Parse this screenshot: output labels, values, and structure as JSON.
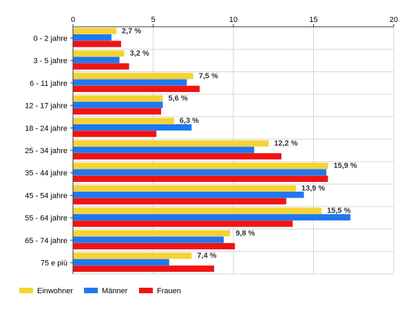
{
  "chart_data": {
    "type": "bar",
    "orientation": "horizontal",
    "categories": [
      "0 - 2 jahre",
      "3 - 5 jahre",
      "6 - 11 jahre",
      "12 - 17 jahre",
      "18 - 24 jahre",
      "25 - 34 jahre",
      "35 - 44 jahre",
      "45 - 54 jahre",
      "55 - 64 jahre",
      "65 - 74 jahre",
      "75 e più"
    ],
    "series": [
      {
        "name": "Einwohner",
        "color": "#f5d335",
        "values": [
          2.7,
          3.2,
          7.5,
          5.6,
          6.3,
          12.2,
          15.9,
          13.9,
          15.5,
          9.8,
          7.4
        ]
      },
      {
        "name": "Männer",
        "color": "#1f78f0",
        "values": [
          2.4,
          2.9,
          7.1,
          5.6,
          7.4,
          11.3,
          15.8,
          14.4,
          17.3,
          9.4,
          6.0
        ]
      },
      {
        "name": "Frauen",
        "color": "#f01414",
        "values": [
          3.0,
          3.5,
          7.9,
          5.5,
          5.2,
          13.0,
          15.9,
          13.3,
          13.7,
          10.1,
          8.8
        ]
      }
    ],
    "data_labels": [
      "2,7 %",
      "3,2 %",
      "7,5 %",
      "5,6 %",
      "6,3 %",
      "12,2 %",
      "15,9 %",
      "13,9 %",
      "15,5 %",
      "9,8 %",
      "7,4 %"
    ],
    "xlim": [
      0,
      20
    ],
    "xticks": [
      0,
      5,
      10,
      15,
      20
    ],
    "xtick_labels": [
      "0",
      "5",
      "10",
      "15",
      "20"
    ],
    "x_axis_position": "top",
    "grid": true,
    "legend_position": "bottom-left",
    "title": "",
    "xlabel": "",
    "ylabel": ""
  }
}
